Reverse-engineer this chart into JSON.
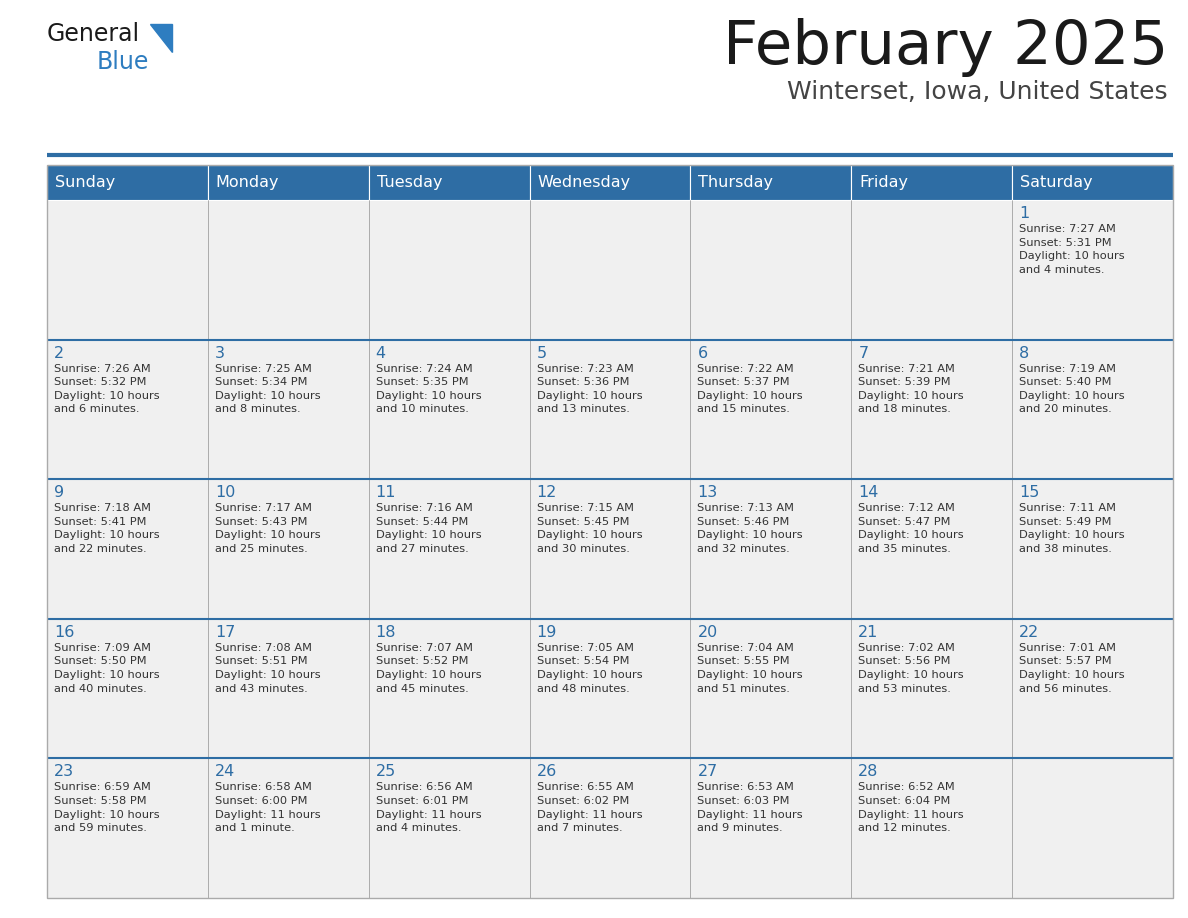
{
  "title": "February 2025",
  "subtitle": "Winterset, Iowa, United States",
  "header_color": "#2E6DA4",
  "header_text_color": "#FFFFFF",
  "cell_bg_color": "#F0F0F0",
  "text_color": "#333333",
  "border_color": "#AAAAAA",
  "sep_line_color": "#2E6DA4",
  "days_of_week": [
    "Sunday",
    "Monday",
    "Tuesday",
    "Wednesday",
    "Thursday",
    "Friday",
    "Saturday"
  ],
  "calendar": [
    [
      {
        "day": null,
        "info": null
      },
      {
        "day": null,
        "info": null
      },
      {
        "day": null,
        "info": null
      },
      {
        "day": null,
        "info": null
      },
      {
        "day": null,
        "info": null
      },
      {
        "day": null,
        "info": null
      },
      {
        "day": 1,
        "info": "Sunrise: 7:27 AM\nSunset: 5:31 PM\nDaylight: 10 hours\nand 4 minutes."
      }
    ],
    [
      {
        "day": 2,
        "info": "Sunrise: 7:26 AM\nSunset: 5:32 PM\nDaylight: 10 hours\nand 6 minutes."
      },
      {
        "day": 3,
        "info": "Sunrise: 7:25 AM\nSunset: 5:34 PM\nDaylight: 10 hours\nand 8 minutes."
      },
      {
        "day": 4,
        "info": "Sunrise: 7:24 AM\nSunset: 5:35 PM\nDaylight: 10 hours\nand 10 minutes."
      },
      {
        "day": 5,
        "info": "Sunrise: 7:23 AM\nSunset: 5:36 PM\nDaylight: 10 hours\nand 13 minutes."
      },
      {
        "day": 6,
        "info": "Sunrise: 7:22 AM\nSunset: 5:37 PM\nDaylight: 10 hours\nand 15 minutes."
      },
      {
        "day": 7,
        "info": "Sunrise: 7:21 AM\nSunset: 5:39 PM\nDaylight: 10 hours\nand 18 minutes."
      },
      {
        "day": 8,
        "info": "Sunrise: 7:19 AM\nSunset: 5:40 PM\nDaylight: 10 hours\nand 20 minutes."
      }
    ],
    [
      {
        "day": 9,
        "info": "Sunrise: 7:18 AM\nSunset: 5:41 PM\nDaylight: 10 hours\nand 22 minutes."
      },
      {
        "day": 10,
        "info": "Sunrise: 7:17 AM\nSunset: 5:43 PM\nDaylight: 10 hours\nand 25 minutes."
      },
      {
        "day": 11,
        "info": "Sunrise: 7:16 AM\nSunset: 5:44 PM\nDaylight: 10 hours\nand 27 minutes."
      },
      {
        "day": 12,
        "info": "Sunrise: 7:15 AM\nSunset: 5:45 PM\nDaylight: 10 hours\nand 30 minutes."
      },
      {
        "day": 13,
        "info": "Sunrise: 7:13 AM\nSunset: 5:46 PM\nDaylight: 10 hours\nand 32 minutes."
      },
      {
        "day": 14,
        "info": "Sunrise: 7:12 AM\nSunset: 5:47 PM\nDaylight: 10 hours\nand 35 minutes."
      },
      {
        "day": 15,
        "info": "Sunrise: 7:11 AM\nSunset: 5:49 PM\nDaylight: 10 hours\nand 38 minutes."
      }
    ],
    [
      {
        "day": 16,
        "info": "Sunrise: 7:09 AM\nSunset: 5:50 PM\nDaylight: 10 hours\nand 40 minutes."
      },
      {
        "day": 17,
        "info": "Sunrise: 7:08 AM\nSunset: 5:51 PM\nDaylight: 10 hours\nand 43 minutes."
      },
      {
        "day": 18,
        "info": "Sunrise: 7:07 AM\nSunset: 5:52 PM\nDaylight: 10 hours\nand 45 minutes."
      },
      {
        "day": 19,
        "info": "Sunrise: 7:05 AM\nSunset: 5:54 PM\nDaylight: 10 hours\nand 48 minutes."
      },
      {
        "day": 20,
        "info": "Sunrise: 7:04 AM\nSunset: 5:55 PM\nDaylight: 10 hours\nand 51 minutes."
      },
      {
        "day": 21,
        "info": "Sunrise: 7:02 AM\nSunset: 5:56 PM\nDaylight: 10 hours\nand 53 minutes."
      },
      {
        "day": 22,
        "info": "Sunrise: 7:01 AM\nSunset: 5:57 PM\nDaylight: 10 hours\nand 56 minutes."
      }
    ],
    [
      {
        "day": 23,
        "info": "Sunrise: 6:59 AM\nSunset: 5:58 PM\nDaylight: 10 hours\nand 59 minutes."
      },
      {
        "day": 24,
        "info": "Sunrise: 6:58 AM\nSunset: 6:00 PM\nDaylight: 11 hours\nand 1 minute."
      },
      {
        "day": 25,
        "info": "Sunrise: 6:56 AM\nSunset: 6:01 PM\nDaylight: 11 hours\nand 4 minutes."
      },
      {
        "day": 26,
        "info": "Sunrise: 6:55 AM\nSunset: 6:02 PM\nDaylight: 11 hours\nand 7 minutes."
      },
      {
        "day": 27,
        "info": "Sunrise: 6:53 AM\nSunset: 6:03 PM\nDaylight: 11 hours\nand 9 minutes."
      },
      {
        "day": 28,
        "info": "Sunrise: 6:52 AM\nSunset: 6:04 PM\nDaylight: 11 hours\nand 12 minutes."
      },
      {
        "day": null,
        "info": null
      }
    ]
  ],
  "logo_general_color": "#1a1a1a",
  "logo_blue_color": "#2E7DC0",
  "figsize": [
    11.88,
    9.18
  ],
  "dpi": 100
}
